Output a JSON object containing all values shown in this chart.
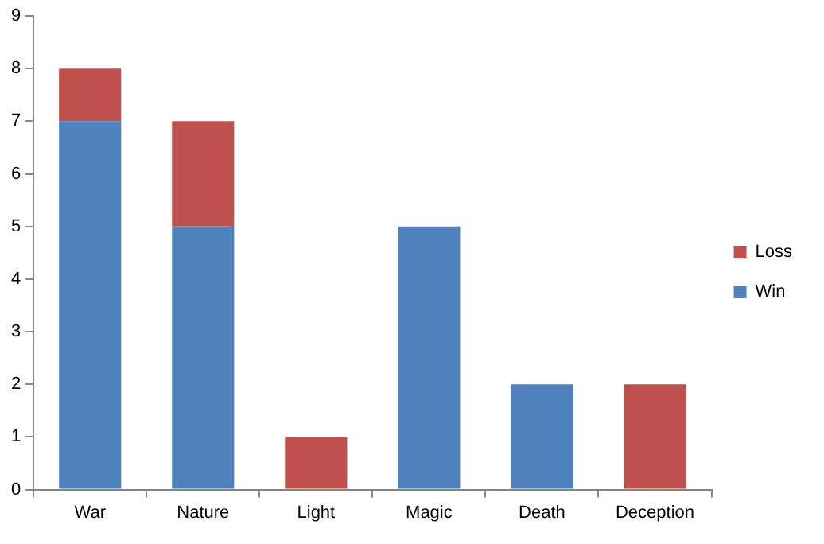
{
  "chart_data": {
    "type": "bar",
    "stacked": true,
    "categories": [
      "War",
      "Nature",
      "Light",
      "Magic",
      "Death",
      "Deception"
    ],
    "series": [
      {
        "name": "Win",
        "color": "#4f81bd",
        "values": [
          7,
          5,
          0,
          5,
          2,
          0
        ]
      },
      {
        "name": "Loss",
        "color": "#c0504d",
        "values": [
          1,
          2,
          1,
          0,
          0,
          2
        ]
      }
    ],
    "ylim": [
      0,
      9
    ],
    "yticks": [
      0,
      1,
      2,
      3,
      4,
      5,
      6,
      7,
      8,
      9
    ],
    "grid": false,
    "legend": "right"
  }
}
